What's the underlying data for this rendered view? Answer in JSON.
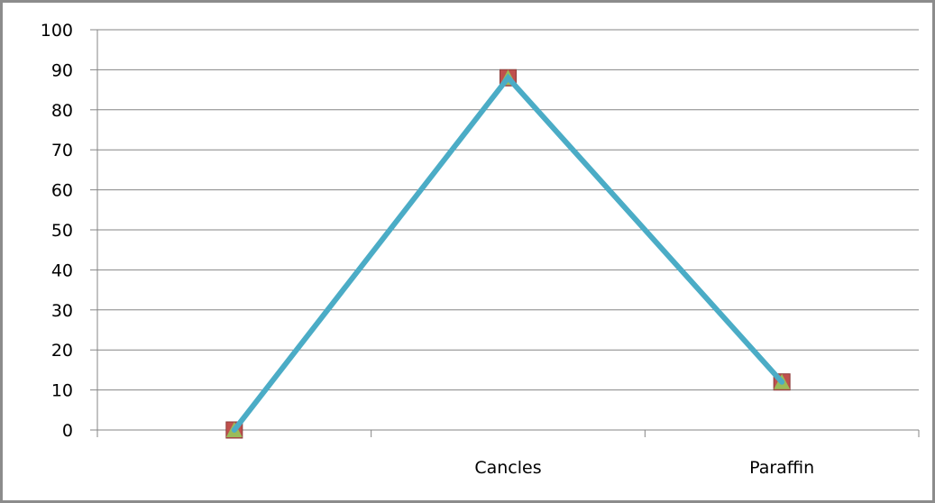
{
  "chart_data": {
    "type": "line",
    "title": "",
    "xlabel": "",
    "ylabel": "",
    "categories": [
      "",
      "Cancles",
      "Paraffin"
    ],
    "ylim": [
      0,
      100
    ],
    "yticks": [
      0,
      10,
      20,
      30,
      40,
      50,
      60,
      70,
      80,
      90,
      100
    ],
    "grid": true,
    "legend": "none",
    "series": [
      {
        "values": [
          0,
          88,
          12
        ],
        "color": "#c0504d",
        "marker": "square"
      },
      {
        "values": [
          0,
          88,
          12
        ],
        "color": "#9bbb59",
        "marker": "triangle"
      },
      {
        "values": [
          0,
          88,
          12
        ],
        "color": "#4bacc6",
        "marker": "none"
      }
    ]
  }
}
